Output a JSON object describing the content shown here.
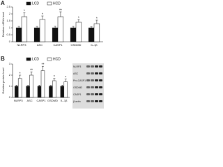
{
  "chart_data": [
    {
      "type": "bar",
      "panel": "A",
      "y_label": "Relative mRNA level",
      "categories": [
        "NLRP3",
        "ASC",
        "CASP1",
        "GSDMD",
        "IL-1β"
      ],
      "series": [
        {
          "name": "LCD",
          "color": "#111111",
          "values": [
            1,
            1,
            1,
            1,
            1
          ],
          "errors": [
            0.1,
            0.1,
            0.12,
            0.1,
            0.08
          ]
        },
        {
          "name": "HCD",
          "color": "#ffffff",
          "values": [
            1.8,
            1.6,
            1.8,
            1.4,
            1.3
          ],
          "errors": [
            0.3,
            0.25,
            0.35,
            0.2,
            0.25
          ]
        }
      ],
      "annotations": [
        "*",
        "*",
        "**",
        "*",
        "*"
      ],
      "ylim": [
        0,
        2.5
      ],
      "yticks": [
        0,
        0.5,
        1,
        1.5,
        2,
        2.5
      ]
    },
    {
      "type": "bar",
      "panel": "B",
      "y_label": "Relative protein level",
      "categories": [
        "NLRP3",
        "ASC",
        "CASP1",
        "GSDMD",
        "IL-1β"
      ],
      "series": [
        {
          "name": "LCD",
          "color": "#111111",
          "values": [
            1,
            1,
            1,
            1,
            1
          ],
          "errors": [
            0.1,
            0.1,
            0.1,
            0.1,
            0.1
          ]
        },
        {
          "name": "HCD",
          "color": "#ffffff",
          "values": [
            1.7,
            2.0,
            2.4,
            1.5,
            1.4
          ],
          "errors": [
            0.3,
            0.3,
            0.4,
            0.2,
            0.25
          ]
        }
      ],
      "annotations": [
        "*",
        "**",
        "**",
        "*",
        "*"
      ],
      "ylim": [
        0,
        3
      ],
      "yticks": [
        0,
        1,
        2,
        3
      ]
    }
  ],
  "blot": {
    "labels": [
      "NLRP3",
      "ASC",
      "Pro-CASP1",
      "GSDMD",
      "CASP1",
      "β-actin"
    ]
  }
}
